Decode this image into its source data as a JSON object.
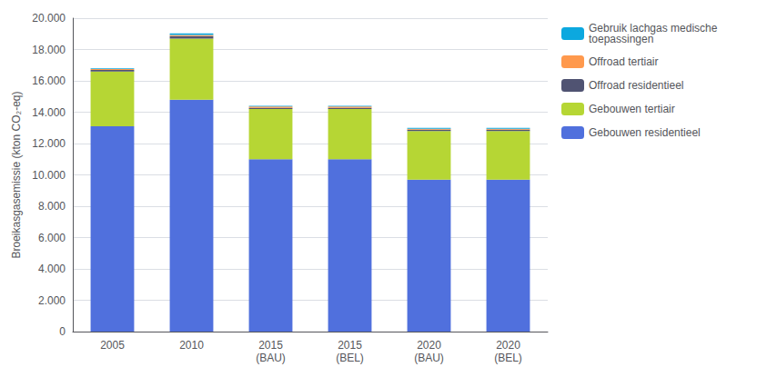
{
  "chart_data": {
    "type": "bar",
    "stacked": true,
    "categories": [
      "2005",
      "2010",
      "2015\n(BAU)",
      "2015\n(BEL)",
      "2020\n(BAU)",
      "2020\n(BEL)"
    ],
    "series": [
      {
        "name": "Gebouwen residentieel",
        "values": [
          13100,
          14800,
          11000,
          11000,
          9700,
          9700
        ]
      },
      {
        "name": "Gebouwen tertiair",
        "values": [
          3500,
          3900,
          3200,
          3200,
          3100,
          3100
        ]
      },
      {
        "name": "Offroad residentieel",
        "values": [
          100,
          150,
          80,
          80,
          80,
          80
        ]
      },
      {
        "name": "Offroad tertiair",
        "values": [
          50,
          80,
          80,
          80,
          60,
          60
        ]
      },
      {
        "name": "Gebruik lachgas medische\ntoepassingen",
        "values": [
          50,
          100,
          50,
          50,
          60,
          60
        ]
      }
    ],
    "ylabel": "Broeikasgasemissie (kton CO₂-eq)",
    "ylim": [
      0,
      20000
    ],
    "yticks": [
      0,
      {
        "value": 2000,
        "label": "2.000"
      },
      {
        "value": 4000,
        "label": "4.000"
      },
      {
        "value": 6000,
        "label": "6.000"
      },
      {
        "value": 8000,
        "label": "8.000"
      },
      {
        "value": 10000,
        "label": "10.000"
      },
      {
        "value": 12000,
        "label": "12.000"
      },
      {
        "value": 14000,
        "label": "14.000"
      },
      {
        "value": 16000,
        "label": "16.000"
      },
      {
        "value": 18000,
        "label": "18.000"
      },
      {
        "value": 20000,
        "label": "20.000"
      }
    ],
    "grid": true,
    "legend": "right"
  }
}
